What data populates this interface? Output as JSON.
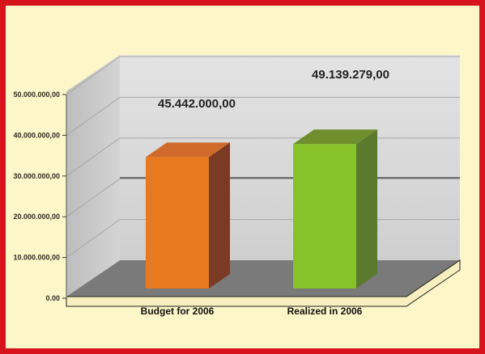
{
  "chart_data": {
    "type": "bar",
    "categories": [
      "Budget for 2006",
      "Realized in 2006"
    ],
    "values": [
      45442000,
      49139279
    ],
    "value_labels": [
      "45.442.000,00",
      "49.139.279,00"
    ],
    "yticks": [
      {
        "value": 0,
        "label": "0.00"
      },
      {
        "value": 10000000,
        "label": "10.000.000,00"
      },
      {
        "value": 20000000,
        "label": "20.000.000,00"
      },
      {
        "value": 30000000,
        "label": "30.000.000,00"
      },
      {
        "value": 40000000,
        "label": "40.000.000,00"
      },
      {
        "value": 50000000,
        "label": "50.000.000,00"
      }
    ],
    "ylim": [
      0,
      50000000
    ],
    "title": "",
    "xlabel": "",
    "ylabel": "",
    "grid": true,
    "legend": "none",
    "style": "3d",
    "colors": {
      "frame": "#d7141c",
      "background": "#fdf6c8",
      "budget_bar": "#e8791d",
      "realized_bar": "#86c22a"
    }
  }
}
